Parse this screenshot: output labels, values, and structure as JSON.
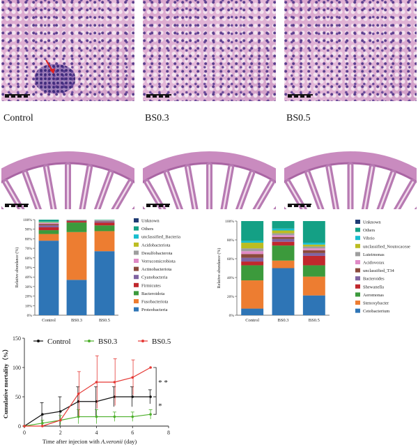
{
  "histology": {
    "panels": [
      {
        "label": "Control"
      },
      {
        "label": "BS0.3"
      },
      {
        "label": "BS0.5"
      }
    ]
  },
  "chart_data": [
    {
      "type": "bar",
      "stacked": true,
      "categories": [
        "Control",
        "BS0.3",
        "BS0.5"
      ],
      "ylabel": "Relative abundance (%)",
      "ylim": [
        0,
        100
      ],
      "yticks": [
        "0%",
        "10%",
        "20%",
        "30%",
        "40%",
        "50%",
        "60%",
        "70%",
        "80%",
        "90%",
        "100%"
      ],
      "series": [
        {
          "name": "Proteobacteria",
          "color": "#2e75b6",
          "values": [
            78,
            37,
            67
          ]
        },
        {
          "name": "Fusobacteriota",
          "color": "#ed7d31",
          "values": [
            7,
            50,
            21
          ]
        },
        {
          "name": "Bacteroidota",
          "color": "#3c9a3c",
          "values": [
            4,
            10,
            6
          ]
        },
        {
          "name": "Firmicutes",
          "color": "#c0282d",
          "values": [
            3,
            1.5,
            3
          ]
        },
        {
          "name": "Cyanobacteria",
          "color": "#8064a2",
          "values": [
            2,
            0.5,
            1
          ]
        },
        {
          "name": "Actinobacteriota",
          "color": "#8b4a3c",
          "values": [
            1.5,
            0.3,
            0.5
          ]
        },
        {
          "name": "Verrucomicrobiota",
          "color": "#e08ac6",
          "values": [
            1,
            0.2,
            0.5
          ]
        },
        {
          "name": "Desulfobacterota",
          "color": "#9e9e9e",
          "values": [
            0.5,
            0.2,
            0.3
          ]
        },
        {
          "name": "Acidobacteriota",
          "color": "#bcbd22",
          "values": [
            0.5,
            0.1,
            0.2
          ]
        },
        {
          "name": "unclassified_Bacteria",
          "color": "#17becf",
          "values": [
            0.5,
            0.1,
            0.2
          ]
        },
        {
          "name": "Others",
          "color": "#14a085",
          "values": [
            2,
            0.1,
            0.3
          ]
        },
        {
          "name": "Unknown",
          "color": "#1f3b73",
          "values": [
            0,
            0,
            0
          ]
        }
      ]
    },
    {
      "type": "bar",
      "stacked": true,
      "categories": [
        "Control",
        "BS0.3",
        "BS0.5"
      ],
      "ylabel": "Relative abundance (%)",
      "ylim": [
        0,
        100
      ],
      "yticks": [
        "0%",
        "20%",
        "40%",
        "60%",
        "80%",
        "100%"
      ],
      "series": [
        {
          "name": "Cetobacterium",
          "color": "#2e75b6",
          "values": [
            7,
            50,
            21
          ]
        },
        {
          "name": "Stenoxybacter",
          "color": "#ed7d31",
          "values": [
            30,
            8,
            20
          ]
        },
        {
          "name": "Aeromonas",
          "color": "#3c9a3c",
          "values": [
            16,
            16,
            12
          ]
        },
        {
          "name": "Shewanella",
          "color": "#c0282d",
          "values": [
            4,
            4,
            10
          ]
        },
        {
          "name": "Bacteroides",
          "color": "#8064a2",
          "values": [
            4,
            3,
            3
          ]
        },
        {
          "name": "unclassified_T34",
          "color": "#8b4a3c",
          "values": [
            4,
            2,
            3
          ]
        },
        {
          "name": "Acidovorax",
          "color": "#e08ac6",
          "values": [
            3,
            2,
            2
          ]
        },
        {
          "name": "Luteimonas",
          "color": "#9e9e9e",
          "values": [
            3,
            2,
            2
          ]
        },
        {
          "name": "unclassified_Noutocaceae",
          "color": "#bcbd22",
          "values": [
            6,
            3,
            2
          ]
        },
        {
          "name": "Vibrio",
          "color": "#17becf",
          "values": [
            2,
            2,
            2
          ]
        },
        {
          "name": "Others",
          "color": "#14a085",
          "values": [
            21,
            8,
            23
          ]
        },
        {
          "name": "Unknown",
          "color": "#1f3b73",
          "values": [
            0,
            0,
            0
          ]
        }
      ]
    },
    {
      "type": "line",
      "xlabel_prefix": "Time after injecion with",
      "xlabel_italic": "A.veronii",
      "xlabel_suffix": "(day)",
      "ylabel": "Cumulative mortality（%）",
      "xlim": [
        0,
        8
      ],
      "ylim": [
        0,
        150
      ],
      "xticks": [
        0,
        2,
        4,
        6,
        8
      ],
      "yticks": [
        0,
        50,
        100,
        150
      ],
      "series": [
        {
          "name": "Control",
          "color": "#111111",
          "x": [
            0,
            1,
            2,
            3,
            4,
            5,
            6,
            7
          ],
          "y": [
            0,
            20,
            25,
            42,
            42,
            50,
            50,
            50
          ],
          "err": [
            0,
            20,
            25,
            25,
            25,
            17,
            17,
            12
          ]
        },
        {
          "name": "BS0.3",
          "color": "#4caf2a",
          "x": [
            0,
            1,
            2,
            3,
            4,
            5,
            6,
            7
          ],
          "y": [
            0,
            5,
            10,
            16,
            16,
            16,
            16,
            20
          ],
          "err": [
            0,
            5,
            8,
            12,
            12,
            8,
            8,
            8
          ]
        },
        {
          "name": "BS0.5",
          "color": "#e53935",
          "x": [
            0,
            1,
            2,
            3,
            4,
            5,
            6,
            7
          ],
          "y": [
            0,
            0,
            10,
            55,
            75,
            75,
            83,
            100
          ],
          "err": [
            0,
            0,
            0,
            38,
            45,
            40,
            30,
            0
          ]
        }
      ],
      "annotations": [
        "* *",
        "*"
      ]
    }
  ]
}
